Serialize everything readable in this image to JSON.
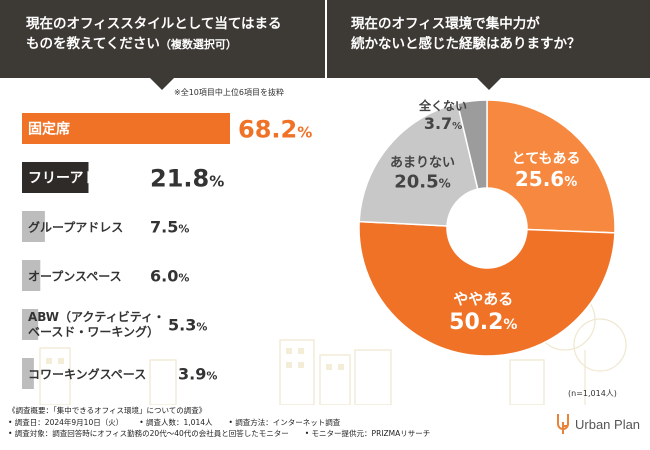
{
  "left_panel": {
    "title_line1": "現在のオフィススタイルとして当てはまる",
    "title_line2": "ものを教えてください",
    "title_suffix": "（複数選択可）",
    "note": "※全10項目中上位6項目を抜粋"
  },
  "right_panel": {
    "title_line1": "現在のオフィス環境で集中力が",
    "title_line2": "続かないと感じた経験はありますか？",
    "sample_size": "(n=1,014人)"
  },
  "chart_data": [
    {
      "type": "bar",
      "orientation": "horizontal",
      "title": "現在のオフィススタイルとして当てはまるものを教えてください（複数選択可）",
      "categories": [
        "固定席",
        "フリーアドレス",
        "グループアドレス",
        "オープンスペース",
        "ABW（アクティビティ・ベースド・ワーキング）",
        "コワーキングスペース"
      ],
      "category_lines": [
        [
          "固定席"
        ],
        [
          "フリーアドレス"
        ],
        [
          "グループアドレス"
        ],
        [
          "オープンスペース"
        ],
        [
          "ABW（アクティビティ・",
          "ベースド・ワーキング）"
        ],
        [
          "コワーキングスペース"
        ]
      ],
      "values": [
        68.2,
        21.8,
        7.5,
        6.0,
        5.3,
        3.9
      ],
      "value_labels": [
        "68.2",
        "21.8",
        "7.5",
        "6.0",
        "5.3",
        "3.9"
      ],
      "unit": "%",
      "xlim": [
        0,
        68.2
      ],
      "colors": [
        "#f07227",
        "#2f2b29",
        "#bdbdbd",
        "#bdbdbd",
        "#bdbdbd",
        "#bdbdbd"
      ]
    },
    {
      "type": "pie",
      "style": "donut",
      "title": "現在のオフィス環境で集中力が続かないと感じた経験はありますか？",
      "labels": [
        "とてもある",
        "ややある",
        "あまりない",
        "全くない"
      ],
      "values": [
        25.6,
        50.2,
        20.5,
        3.7
      ],
      "value_labels": [
        "25.6",
        "50.2",
        "20.5",
        "3.7"
      ],
      "unit": "%",
      "colors": [
        "#f6893f",
        "#f07227",
        "#c8c8c8",
        "#9c9c9c"
      ]
    }
  ],
  "footer": {
    "overview": "《調査概要：「集中できるオフィス環境」についての調査》",
    "date": "• 調査日：2024年9月10日（火）",
    "count": "• 調査人数：1,014人",
    "method": "• 調査方法：インターネット調査",
    "target": "• 調査対象：調査回答時にオフィス勤務の20代～40代の会社員と回答したモニター",
    "provider": "• モニター提供元：PRIZMAリサーチ"
  },
  "brand": {
    "name": "Urban Plan",
    "icon": "urban-plan-logo-icon"
  }
}
